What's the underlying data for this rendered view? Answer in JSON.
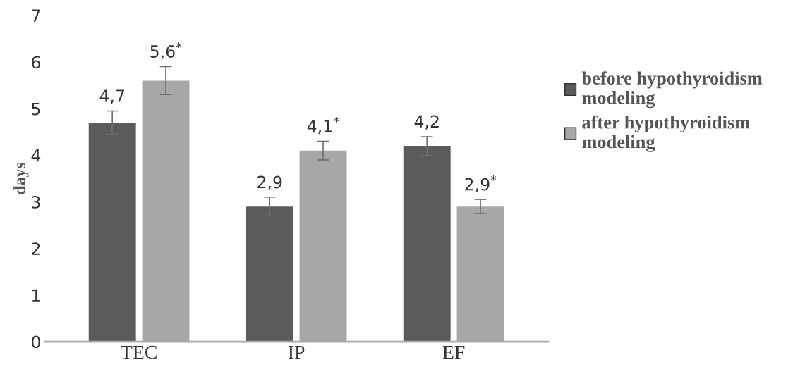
{
  "chart_data": {
    "type": "bar",
    "ylabel": "days",
    "categories": [
      "TEC",
      "IP",
      "EF"
    ],
    "series": [
      {
        "name": "before hypothyroidism modeling",
        "color": "#5b5b5d",
        "values": [
          4.7,
          2.9,
          4.2
        ],
        "errors": [
          0.25,
          0.2,
          0.2
        ],
        "value_labels": [
          "4,7",
          "2,9",
          "4,2"
        ]
      },
      {
        "name": "after hypothyroidism modeling",
        "color": "#a6a7a9",
        "values": [
          5.6,
          4.1,
          2.9
        ],
        "errors": [
          0.3,
          0.2,
          0.15
        ],
        "value_labels": [
          "5,6$^{*}$",
          "4,1$^{*}$",
          "2,9$^{*}$"
        ]
      }
    ],
    "ylim": [
      0,
      7
    ],
    "yticks": [
      0,
      1,
      2,
      3,
      4,
      5,
      6,
      7
    ],
    "grid": false,
    "legend": "right"
  }
}
